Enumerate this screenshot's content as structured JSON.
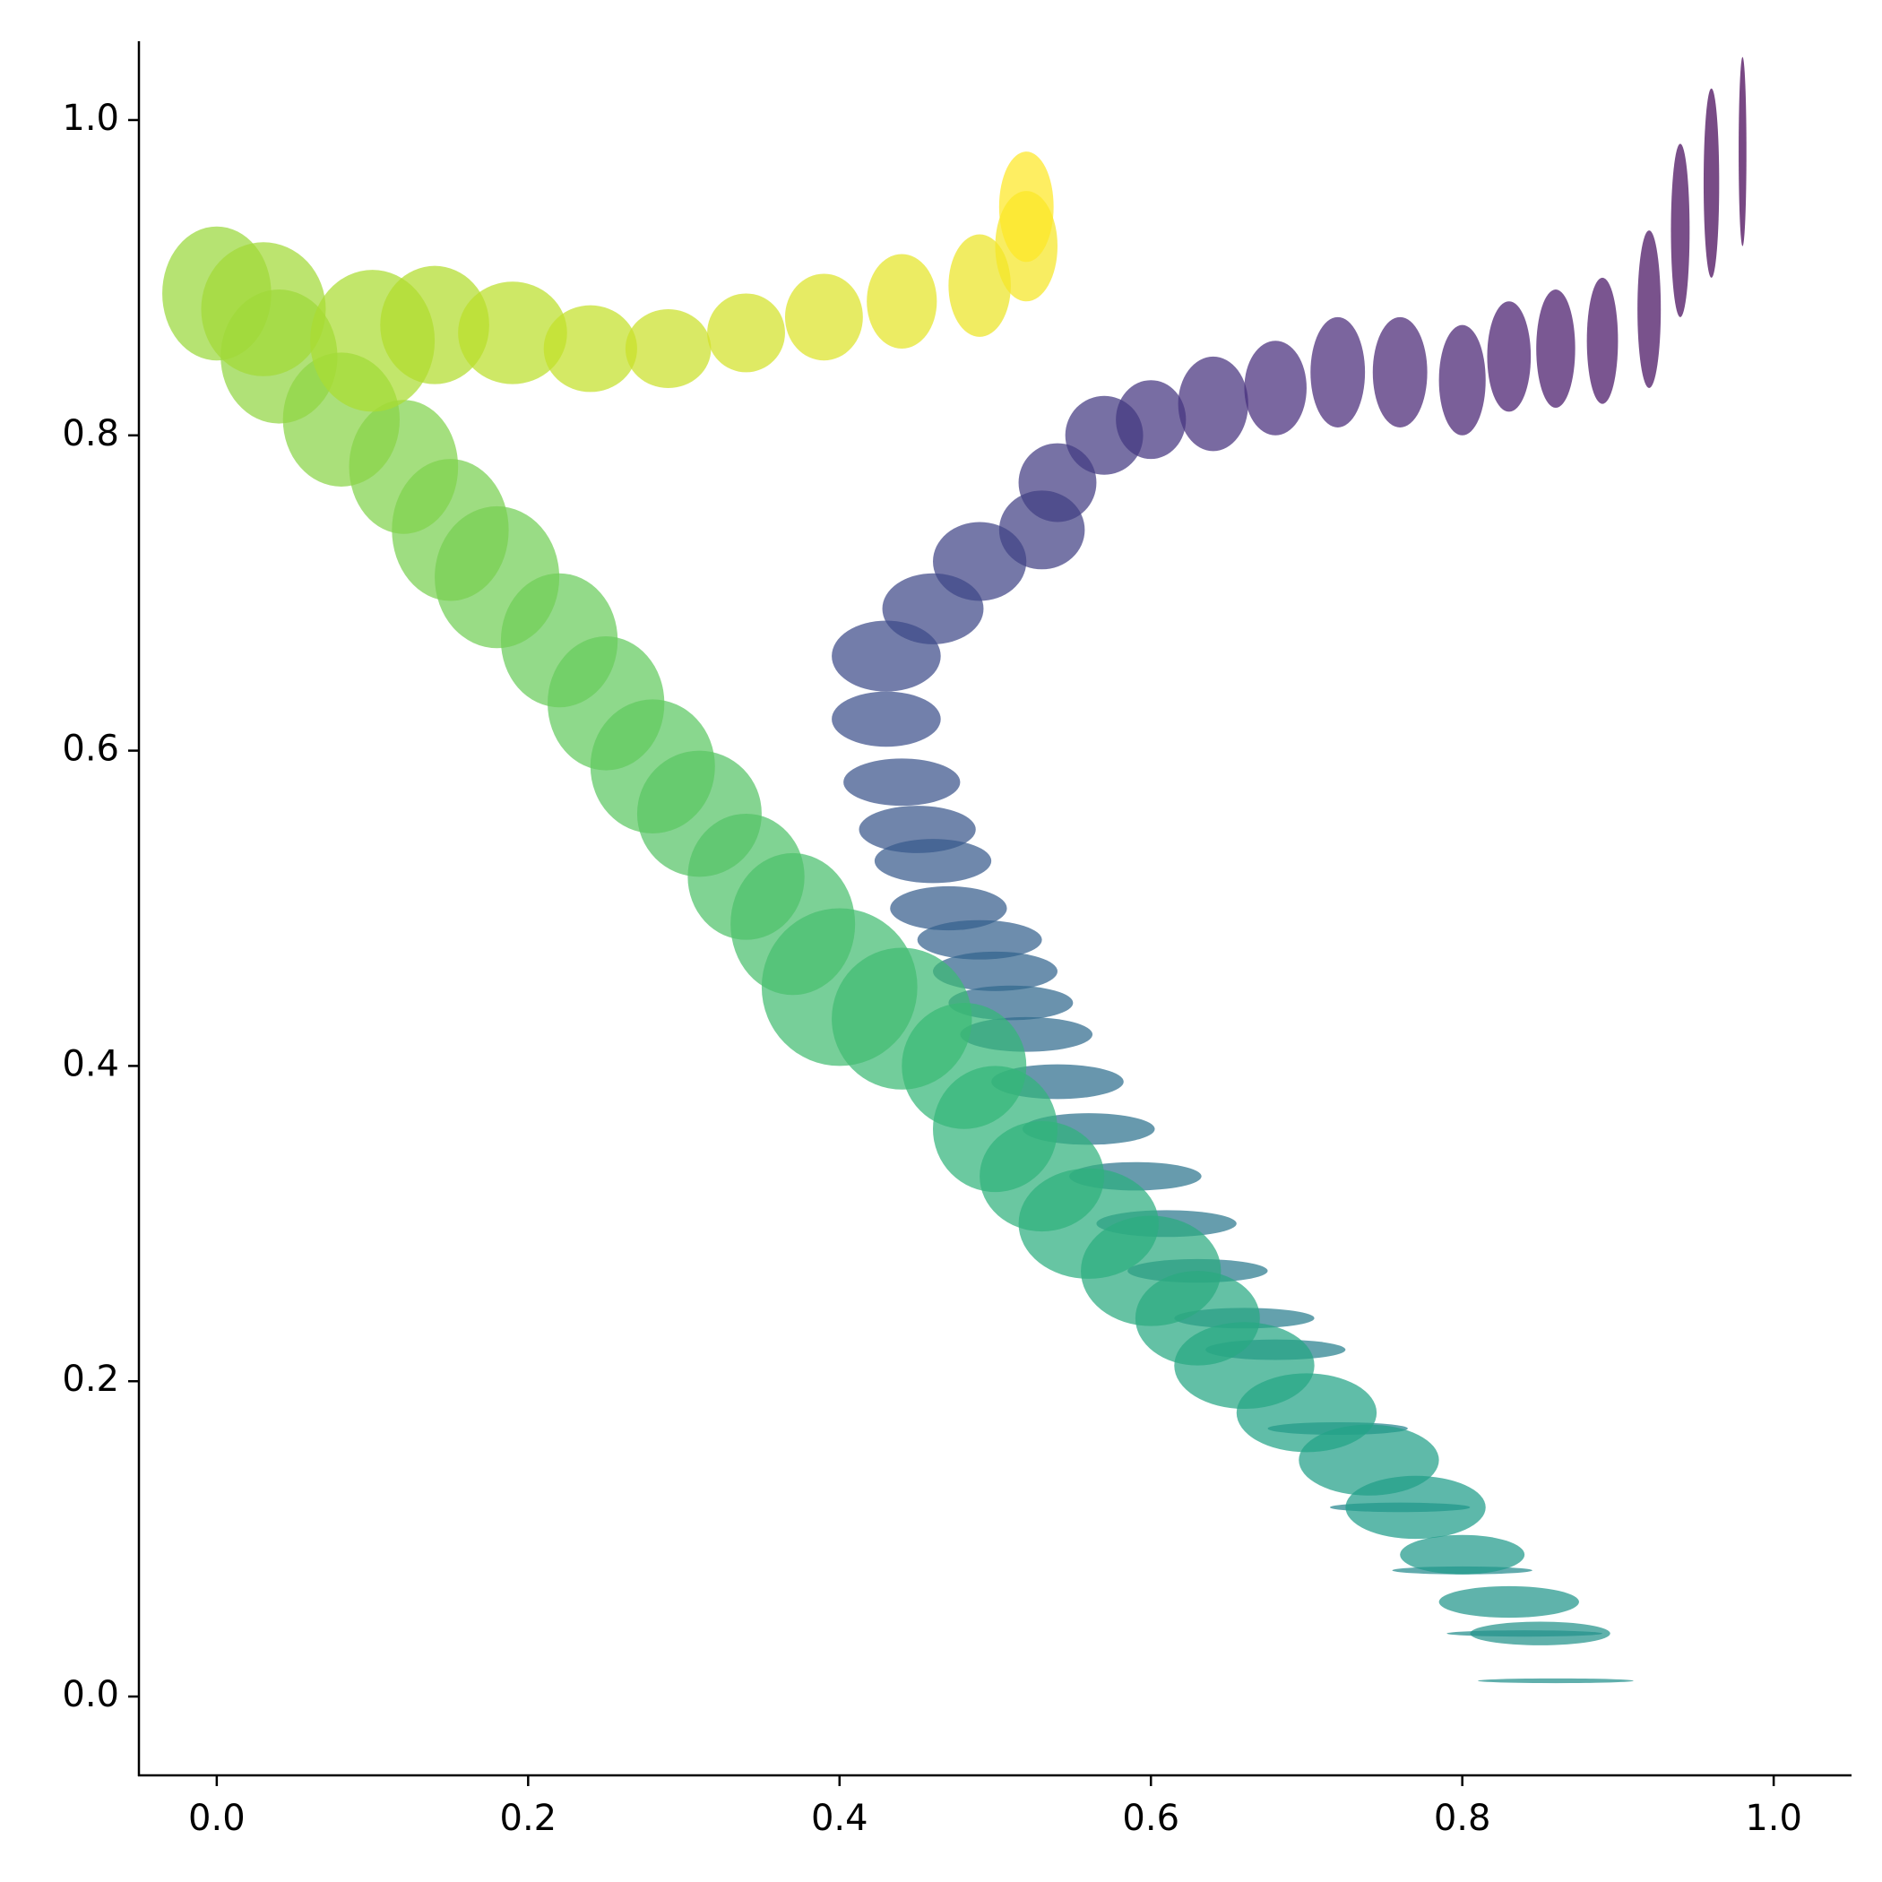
{
  "chart_data": {
    "type": "ellipse",
    "x": [
      0.98,
      0.96,
      0.94,
      0.92,
      0.89,
      0.86,
      0.83,
      0.8,
      0.76,
      0.72,
      0.68,
      0.64,
      0.6,
      0.57,
      0.54,
      0.53,
      0.49,
      0.46,
      0.43,
      0.43,
      0.44,
      0.45,
      0.46,
      0.47,
      0.49,
      0.5,
      0.51,
      0.52,
      0.54,
      0.56,
      0.59,
      0.61,
      0.63,
      0.66,
      0.68,
      0.72,
      0.76,
      0.8,
      0.84,
      0.86,
      0.85,
      0.83,
      0.8,
      0.77,
      0.74,
      0.7,
      0.66,
      0.63,
      0.6,
      0.56,
      0.53,
      0.5,
      0.48,
      0.44,
      0.4,
      0.37,
      0.34,
      0.31,
      0.28,
      0.25,
      0.22,
      0.18,
      0.15,
      0.12,
      0.08,
      0.04,
      0.0,
      0.03,
      0.1,
      0.14,
      0.19,
      0.24,
      0.29,
      0.34,
      0.39,
      0.44,
      0.49,
      0.52,
      0.52
    ],
    "y": [
      0.98,
      0.96,
      0.93,
      0.88,
      0.86,
      0.855,
      0.85,
      0.835,
      0.84,
      0.84,
      0.83,
      0.82,
      0.81,
      0.8,
      0.77,
      0.74,
      0.72,
      0.69,
      0.66,
      0.62,
      0.58,
      0.55,
      0.53,
      0.5,
      0.48,
      0.46,
      0.44,
      0.42,
      0.39,
      0.36,
      0.33,
      0.3,
      0.27,
      0.24,
      0.22,
      0.17,
      0.12,
      0.08,
      0.04,
      0.01,
      0.04,
      0.06,
      0.09,
      0.12,
      0.15,
      0.18,
      0.21,
      0.24,
      0.27,
      0.3,
      0.33,
      0.36,
      0.4,
      0.43,
      0.45,
      0.49,
      0.52,
      0.56,
      0.59,
      0.63,
      0.67,
      0.71,
      0.74,
      0.78,
      0.81,
      0.85,
      0.89,
      0.88,
      0.86,
      0.87,
      0.865,
      0.855,
      0.855,
      0.865,
      0.875,
      0.885,
      0.895,
      0.92,
      0.945
    ],
    "width": [
      0.005,
      0.01,
      0.012,
      0.015,
      0.02,
      0.025,
      0.028,
      0.03,
      0.035,
      0.035,
      0.04,
      0.045,
      0.045,
      0.05,
      0.05,
      0.055,
      0.06,
      0.065,
      0.07,
      0.07,
      0.075,
      0.075,
      0.075,
      0.075,
      0.08,
      0.08,
      0.08,
      0.085,
      0.085,
      0.085,
      0.085,
      0.09,
      0.09,
      0.09,
      0.09,
      0.09,
      0.09,
      0.09,
      0.1,
      0.1,
      0.09,
      0.09,
      0.08,
      0.09,
      0.09,
      0.09,
      0.09,
      0.08,
      0.09,
      0.09,
      0.08,
      0.08,
      0.08,
      0.09,
      0.1,
      0.08,
      0.075,
      0.08,
      0.08,
      0.075,
      0.075,
      0.08,
      0.075,
      0.07,
      0.075,
      0.075,
      0.07,
      0.08,
      0.08,
      0.07,
      0.07,
      0.06,
      0.055,
      0.05,
      0.05,
      0.045,
      0.04,
      0.04,
      0.035
    ],
    "height": [
      0.12,
      0.12,
      0.11,
      0.1,
      0.08,
      0.075,
      0.07,
      0.07,
      0.07,
      0.07,
      0.06,
      0.06,
      0.05,
      0.05,
      0.05,
      0.05,
      0.05,
      0.045,
      0.045,
      0.035,
      0.03,
      0.03,
      0.028,
      0.028,
      0.025,
      0.025,
      0.022,
      0.022,
      0.022,
      0.02,
      0.018,
      0.017,
      0.015,
      0.013,
      0.013,
      0.008,
      0.006,
      0.005,
      0.004,
      0.003,
      0.015,
      0.02,
      0.025,
      0.04,
      0.045,
      0.05,
      0.055,
      0.06,
      0.07,
      0.07,
      0.07,
      0.08,
      0.08,
      0.09,
      0.1,
      0.09,
      0.08,
      0.08,
      0.085,
      0.085,
      0.085,
      0.09,
      0.09,
      0.085,
      0.085,
      0.085,
      0.085,
      0.085,
      0.09,
      0.075,
      0.065,
      0.055,
      0.05,
      0.05,
      0.055,
      0.06,
      0.065,
      0.07,
      0.07
    ],
    "colormap": [
      "#440154",
      "#482878",
      "#3e4989",
      "#31688e",
      "#26828e",
      "#1f9e89",
      "#35b779",
      "#6ece58",
      "#b5de2b",
      "#fde725"
    ],
    "xlim": [
      -0.05,
      1.05
    ],
    "ylim": [
      -0.05,
      1.05
    ],
    "xticks": [
      {
        "value": 0,
        "label": "0.0"
      },
      0.2,
      0.4,
      0.6,
      0.8,
      {
        "value": 1,
        "label": "1.0"
      }
    ],
    "yticks": [
      {
        "value": 0,
        "label": "0.0"
      },
      0.2,
      0.4,
      0.6,
      0.8,
      {
        "value": 1,
        "label": "1.0"
      }
    ]
  }
}
